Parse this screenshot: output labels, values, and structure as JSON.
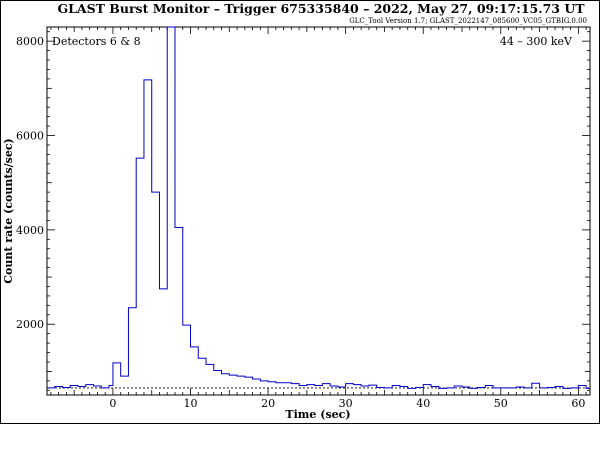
{
  "chart_data": {
    "type": "line",
    "title": "GLAST Burst Monitor  –  Trigger 675335840  –  2022, May 27, 09:17:15.73 UT",
    "subtitle": "GLC_Tool Version 1.7; GLAST_2022147_085600_VC05_GTBIG.0.00",
    "detectors_label": "Detectors 6 & 8",
    "energy_label": "44 – 300 keV",
    "xlabel": "Time (sec)",
    "ylabel": "Count rate (counts/sec)",
    "xlim": [
      -8.5,
      61.5
    ],
    "ylim": [
      500,
      8300
    ],
    "xticks": [
      0,
      10,
      20,
      30,
      40,
      50,
      60
    ],
    "xtick_labels": [
      "0",
      "10",
      "20",
      "30",
      "40",
      "50",
      "60"
    ],
    "yticks": [
      2000,
      4000,
      6000,
      8000
    ],
    "ytick_labels": [
      "2000",
      "4000",
      "6000",
      "8000"
    ],
    "background_level": 650,
    "series": [
      {
        "color": "#0000cc",
        "step": "pre-binned",
        "bin_edges": [
          -8.5,
          -7.5,
          -6.5,
          -5.5,
          -4.5,
          -3.5,
          -2.5,
          -1.5,
          -0.5,
          0.0,
          1.0,
          2.0,
          3.0,
          4.0,
          5.0,
          6.0,
          7.0,
          8.0,
          9.0,
          10.0,
          11.0,
          12.0,
          13.0,
          14.0,
          15.0,
          16.0,
          17.0,
          18.0,
          19.0,
          20.0,
          21.0,
          22.0,
          23.0,
          24.0,
          25.0,
          26.0,
          27.0,
          28.0,
          29.0,
          30.0,
          31.0,
          32.0,
          33.0,
          34.0,
          35.0,
          36.0,
          37.0,
          38.0,
          39.0,
          40.0,
          41.0,
          42.0,
          43.0,
          44.0,
          45.0,
          46.0,
          47.0,
          48.0,
          49.0,
          50.0,
          51.0,
          52.0,
          53.0,
          54.0,
          55.0,
          56.0,
          57.0,
          58.0,
          59.0,
          60.0,
          61.0,
          61.5
        ],
        "values": [
          650,
          680,
          660,
          700,
          680,
          720,
          690,
          650,
          700,
          1180,
          900,
          2350,
          5520,
          7180,
          4800,
          2750,
          8300,
          4050,
          1980,
          1520,
          1280,
          1150,
          1020,
          950,
          920,
          900,
          880,
          840,
          800,
          780,
          760,
          760,
          740,
          700,
          720,
          700,
          740,
          690,
          670,
          740,
          720,
          690,
          710,
          660,
          650,
          700,
          680,
          640,
          660,
          720,
          680,
          640,
          650,
          690,
          670,
          640,
          660,
          700,
          650,
          650,
          650,
          670,
          650,
          750,
          650,
          660,
          680,
          640,
          650,
          700,
          640
        ]
      }
    ]
  }
}
